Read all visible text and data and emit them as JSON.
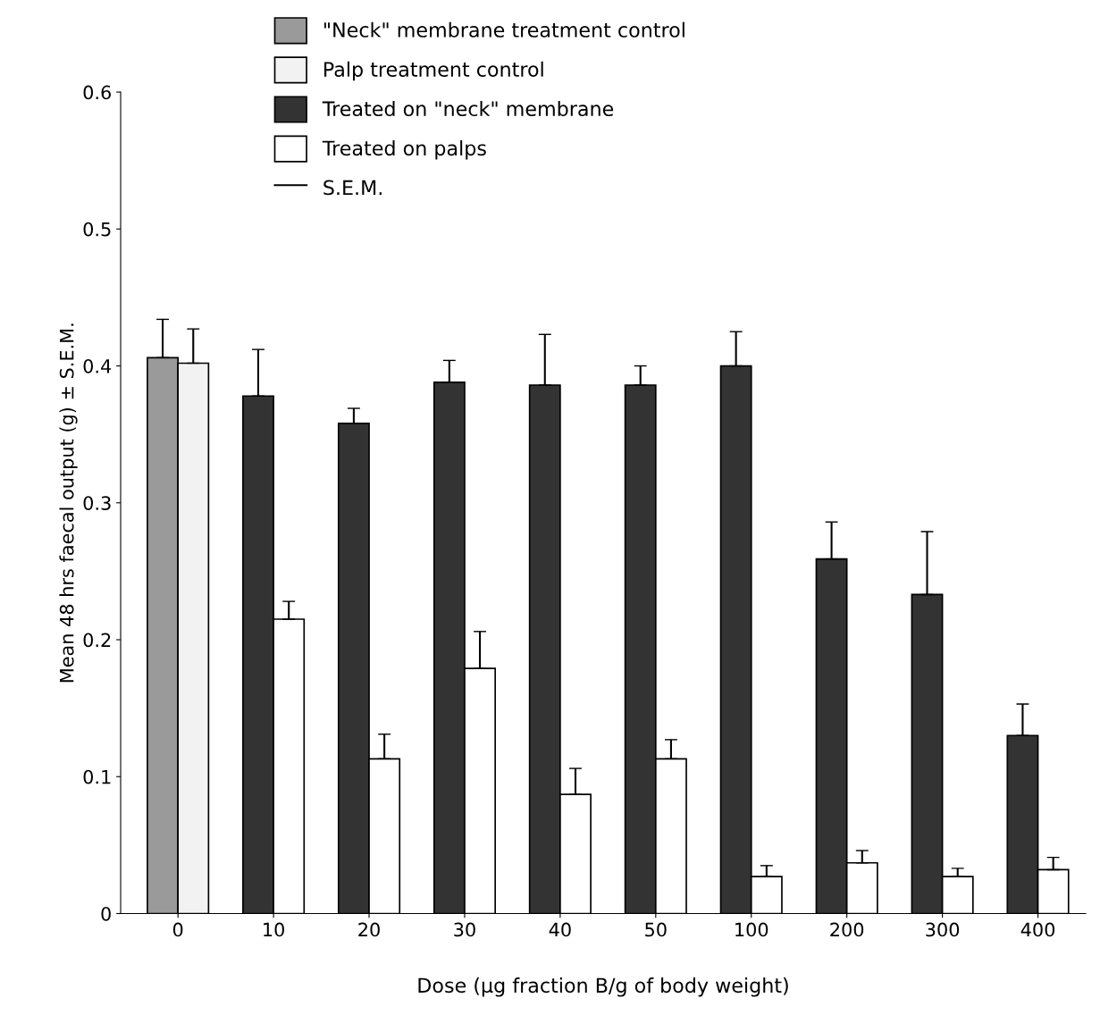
{
  "chart_data": {
    "type": "bar",
    "xlabel": "Dose (µg fraction B/g of body weight)",
    "ylabel": "Mean 48 hrs faecal output (g) ± S.E.M.",
    "categories": [
      "0",
      "10",
      "20",
      "30",
      "40",
      "50",
      "100",
      "200",
      "300",
      "400"
    ],
    "series": [
      {
        "name": "\"Neck\" membrane treatment control",
        "color": "#9a9a9a",
        "values": [
          0.406,
          null,
          null,
          null,
          null,
          null,
          null,
          null,
          null,
          null
        ],
        "errors": [
          [
            0.406,
            0.434
          ],
          null,
          null,
          null,
          null,
          null,
          null,
          null,
          null,
          null
        ]
      },
      {
        "name": "Palp treatment control",
        "color": "#f2f2f2",
        "values": [
          0.402,
          null,
          null,
          null,
          null,
          null,
          null,
          null,
          null,
          null
        ],
        "errors": [
          [
            0.402,
            0.427
          ],
          null,
          null,
          null,
          null,
          null,
          null,
          null,
          null,
          null
        ]
      },
      {
        "name": "Treated on \"neck\" membrane",
        "color": "#333333",
        "values": [
          null,
          0.378,
          0.358,
          0.388,
          0.386,
          0.386,
          0.4,
          0.259,
          0.233,
          0.13
        ],
        "errors": [
          null,
          [
            0.378,
            0.412
          ],
          [
            0.358,
            0.369
          ],
          [
            0.388,
            0.404
          ],
          [
            0.386,
            0.423
          ],
          [
            0.386,
            0.4
          ],
          [
            0.4,
            0.425
          ],
          [
            0.259,
            0.286
          ],
          [
            0.233,
            0.279
          ],
          [
            0.13,
            0.153
          ]
        ]
      },
      {
        "name": "Treated on palps",
        "color": "#ffffff",
        "values": [
          null,
          0.215,
          0.113,
          0.179,
          0.087,
          0.113,
          0.027,
          0.037,
          0.027,
          0.032
        ],
        "errors": [
          null,
          [
            0.215,
            0.228
          ],
          [
            0.113,
            0.131
          ],
          [
            0.179,
            0.206
          ],
          [
            0.087,
            0.106
          ],
          [
            0.113,
            0.127
          ],
          [
            0.027,
            0.035
          ],
          [
            0.037,
            0.046
          ],
          [
            0.027,
            0.033
          ],
          [
            0.032,
            0.041
          ]
        ]
      }
    ],
    "ylim": [
      0,
      0.6
    ],
    "yticks": [
      {
        "value": 0,
        "label": "0"
      },
      0.1,
      0.2,
      0.3,
      0.4,
      0.5,
      0.6
    ],
    "legend": "top",
    "annotations": [
      "S.E.M."
    ]
  }
}
